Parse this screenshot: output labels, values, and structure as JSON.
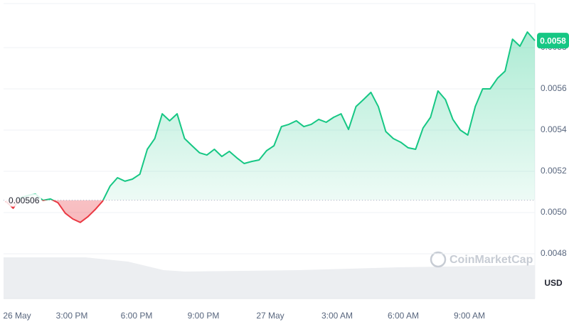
{
  "chart_data": {
    "type": "line",
    "x_labels": [
      "26 May",
      "3:00 PM",
      "6:00 PM",
      "9:00 PM",
      "27 May",
      "3:00 AM",
      "6:00 AM",
      "9:00 AM"
    ],
    "values": [
      0.005055,
      0.005021,
      0.005072,
      0.005083,
      0.00509,
      0.005059,
      0.005066,
      0.005048,
      0.004997,
      0.004969,
      0.004952,
      0.004979,
      0.005014,
      0.005055,
      0.005128,
      0.005169,
      0.005152,
      0.005162,
      0.005186,
      0.005307,
      0.005359,
      0.005479,
      0.005445,
      0.005479,
      0.005359,
      0.005324,
      0.00529,
      0.005279,
      0.005307,
      0.005272,
      0.005297,
      0.005266,
      0.005238,
      0.005248,
      0.005255,
      0.0053,
      0.005324,
      0.005417,
      0.005428,
      0.005445,
      0.005417,
      0.005428,
      0.005452,
      0.005438,
      0.005462,
      0.005479,
      0.005403,
      0.005514,
      0.005548,
      0.005583,
      0.005514,
      0.005393,
      0.005359,
      0.005341,
      0.005314,
      0.005307,
      0.00541,
      0.005462,
      0.00559,
      0.005548,
      0.005452,
      0.0054,
      0.005376,
      0.005514,
      0.0056,
      0.0056,
      0.005652,
      0.005686,
      0.005841,
      0.005807,
      0.005876,
      0.005834
    ],
    "up_color": "#16c784",
    "down_color": "#ea3943",
    "baseline": {
      "value": 0.00506,
      "label": "0.00506"
    },
    "current_label": "0.0058",
    "ylim": [
      0.0048,
      0.006
    ],
    "yticks": [
      0.0048,
      {
        "value": 0.005,
        "label": "0.0050"
      },
      0.0052,
      0.0054,
      0.0056,
      0.0058
    ],
    "grid": true,
    "currency": "USD",
    "watermark": "CoinMarketCap"
  }
}
